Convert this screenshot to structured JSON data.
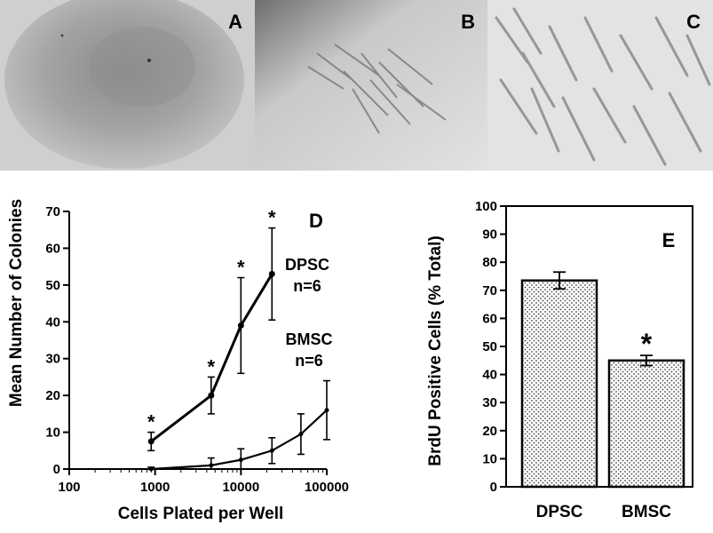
{
  "panels": {
    "a": {
      "letter": "A"
    },
    "b": {
      "letter": "B"
    },
    "c": {
      "letter": "C"
    }
  },
  "chart_data": [
    {
      "type": "line",
      "panel_letter": "D",
      "xscale": "log",
      "xlim": [
        100,
        100000
      ],
      "ylim": [
        0,
        70
      ],
      "xticks": [
        "100",
        "1000",
        "10000",
        "100000"
      ],
      "yticks": [
        "0",
        "10",
        "20",
        "30",
        "40",
        "50",
        "60",
        "70"
      ],
      "ylabel": "Mean Number of Colonies",
      "xlabel": "Cells Plated per Well",
      "series": [
        {
          "name": "DPSC",
          "n_label": "n=6",
          "x": [
            900,
            4500,
            10000,
            23000
          ],
          "y": [
            7.5,
            20,
            39,
            53
          ],
          "error": [
            2.5,
            5,
            13,
            12.5
          ],
          "significance": [
            "*",
            "*",
            "*",
            "*"
          ]
        },
        {
          "name": "BMSC",
          "n_label": "n=6",
          "x": [
            900,
            4500,
            10000,
            23000,
            50000,
            100000
          ],
          "y": [
            0,
            1,
            2.5,
            5,
            9.5,
            16
          ],
          "error": [
            0.5,
            2,
            3,
            3.5,
            5.5,
            8
          ]
        }
      ]
    },
    {
      "type": "bar",
      "panel_letter": "E",
      "categories": [
        "DPSC",
        "BMSC"
      ],
      "values": [
        73.5,
        45
      ],
      "error": [
        3,
        1.8
      ],
      "significance": [
        "",
        "*"
      ],
      "ylim": [
        0,
        100
      ],
      "yticks": [
        "0",
        "10",
        "20",
        "30",
        "40",
        "50",
        "60",
        "70",
        "80",
        "90",
        "100"
      ],
      "ylabel": "BrdU Positive Cells (% Total)"
    }
  ]
}
